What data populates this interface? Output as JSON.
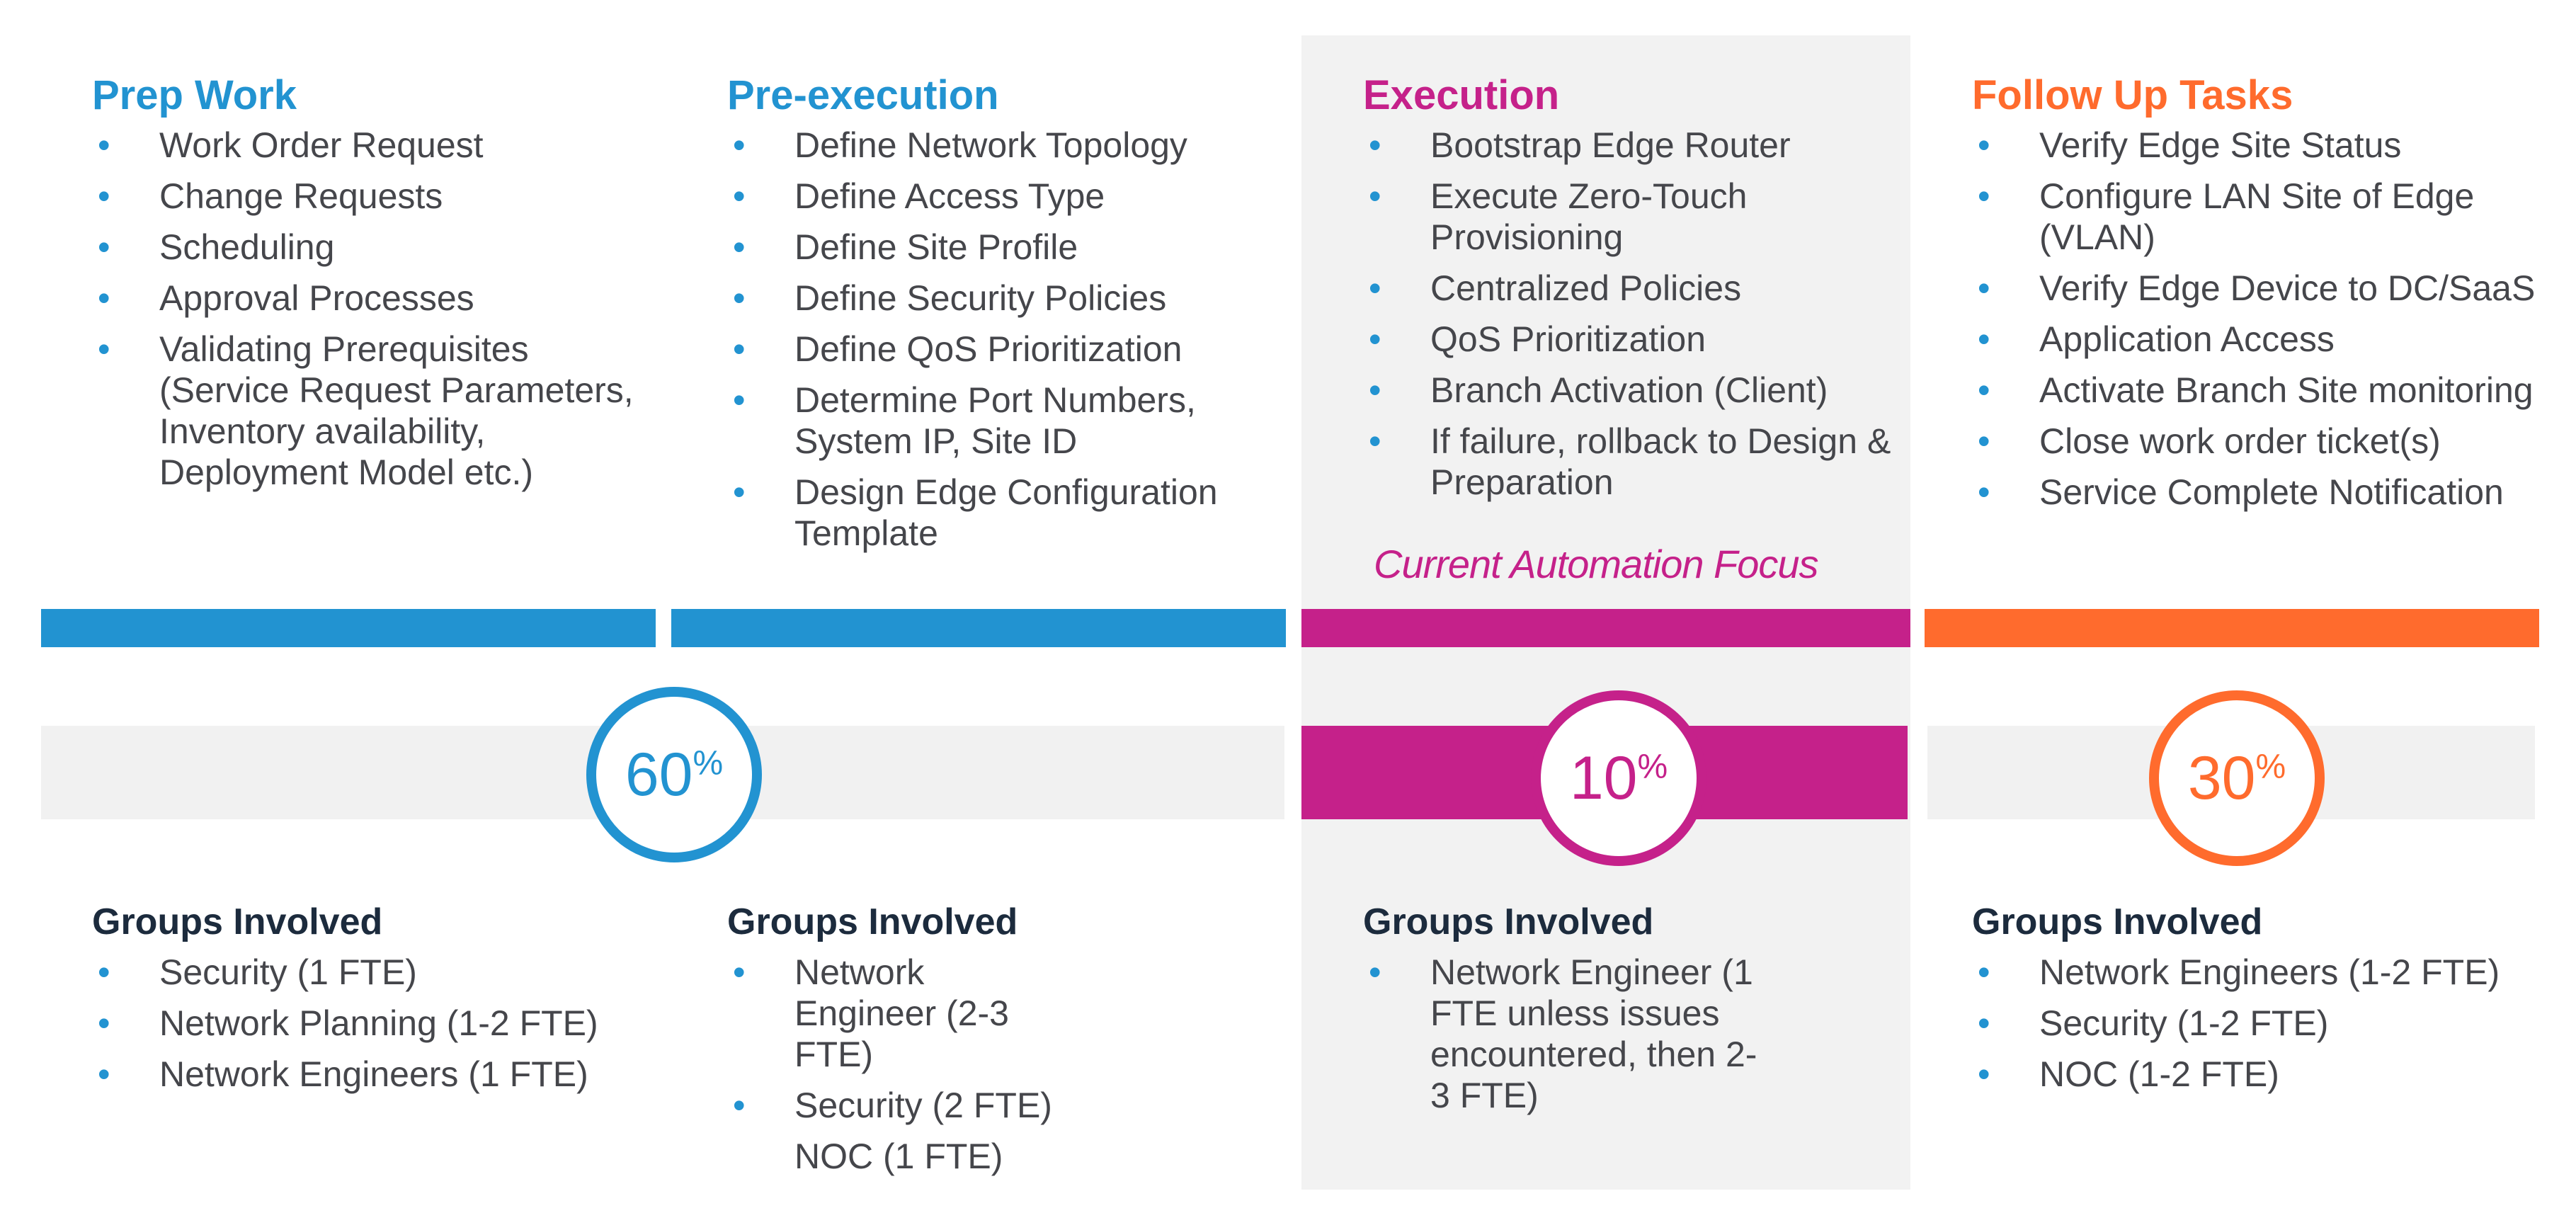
{
  "colors": {
    "blue": "#2293d1",
    "magenta": "#c5218a",
    "orange": "#ff6b2d",
    "band_gray": "#f1f1f1",
    "exec_bg": "#f2f2f2"
  },
  "phases": [
    {
      "title": "Prep Work",
      "items": [
        "Work Order Request",
        "Change Requests",
        "Scheduling",
        "Approval Processes",
        "Validating Prerequisites (Service Request Parameters, Inventory availability, Deployment Model etc.)"
      ],
      "percent": "60",
      "percent_unit": "%",
      "groups_title": "Groups Involved",
      "groups": [
        "Security (1 FTE)",
        "Network Planning (1-2 FTE)",
        "Network Engineers (1 FTE)"
      ]
    },
    {
      "title": "Pre-execution",
      "items": [
        "Define Network Topology",
        "Define Access Type",
        "Define Site Profile",
        "Define Security Policies",
        "Define QoS Prioritization",
        "Determine Port Numbers, System IP, Site ID",
        "Design Edge Configuration Template"
      ],
      "groups_title": "Groups Involved",
      "groups": [
        "Network Engineer (2-3 FTE)",
        "Security (2 FTE)",
        "NOC (1 FTE)"
      ]
    },
    {
      "title": "Execution",
      "items": [
        "Bootstrap Edge Router",
        "Execute Zero-Touch Provisioning",
        "Centralized Policies",
        "QoS Prioritization",
        "Branch Activation (Client)",
        "If failure, rollback to Design & Preparation"
      ],
      "focus_label": "Current Automation Focus",
      "percent": "10",
      "percent_unit": "%",
      "groups_title": "Groups Involved",
      "groups": [
        "Network Engineer (1 FTE unless issues encountered, then 2-3 FTE)"
      ]
    },
    {
      "title": "Follow Up Tasks",
      "items": [
        "Verify Edge Site Status",
        "Configure LAN Site of Edge (VLAN)",
        "Verify Edge Device to DC/SaaS",
        "Application Access",
        "Activate Branch Site monitoring",
        "Close work order ticket(s)",
        "Service Complete Notification"
      ],
      "percent": "30",
      "percent_unit": "%",
      "groups_title": "Groups Involved",
      "groups": [
        "Network Engineers (1-2 FTE)",
        "Security (1-2 FTE)",
        "NOC (1-2 FTE)"
      ]
    }
  ]
}
